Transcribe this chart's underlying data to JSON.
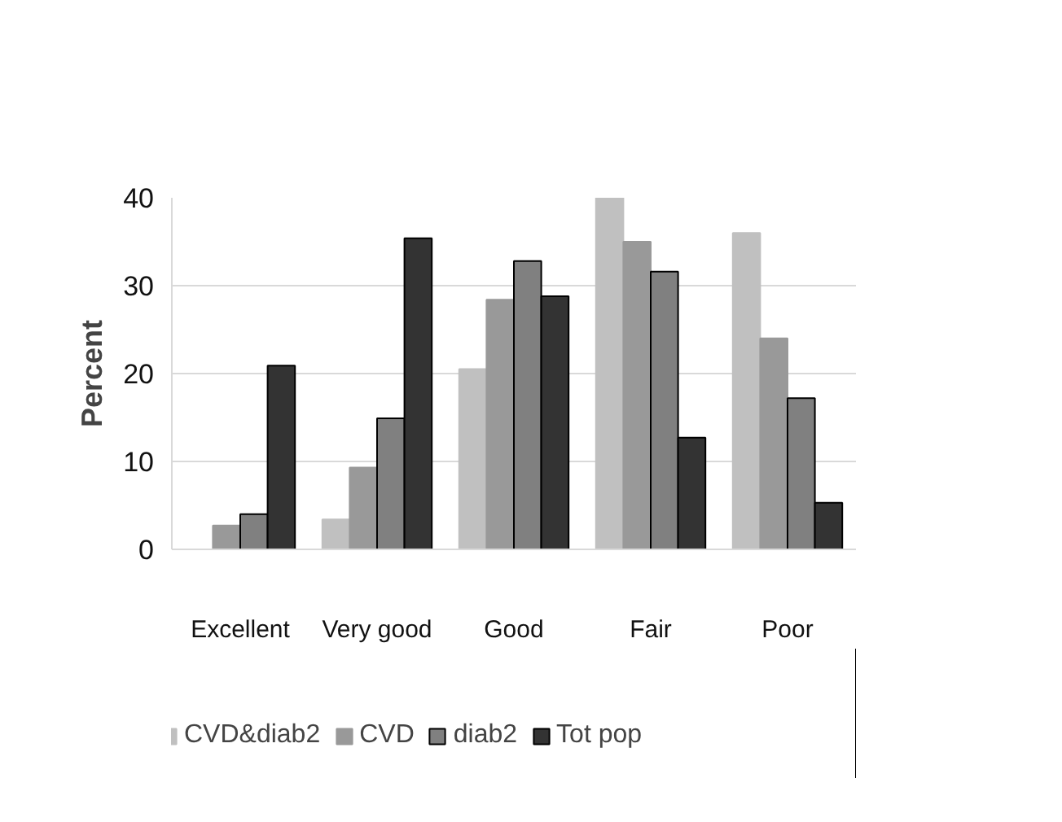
{
  "chart_data": {
    "type": "bar",
    "ylabel": "Percent",
    "categories": [
      "Excellent",
      "Very good",
      "Good",
      "Fair",
      "Poor"
    ],
    "series": [
      {
        "name": "CVD&diab2",
        "color": "#c0c0c0",
        "values": [
          0,
          3.4,
          20.5,
          40,
          36
        ]
      },
      {
        "name": "CVD",
        "color": "#999999",
        "values": [
          2.7,
          9.3,
          28.4,
          35,
          24
        ]
      },
      {
        "name": "diab2",
        "color": "#808080",
        "values": [
          4,
          14.9,
          32.8,
          31.6,
          17.2
        ]
      },
      {
        "name": "Tot pop",
        "color": "#333333",
        "values": [
          20.9,
          35.4,
          28.8,
          12.7,
          5.3
        ]
      }
    ],
    "ylim": [
      0,
      40
    ],
    "yticks": [
      0,
      10,
      20,
      30,
      40
    ],
    "grid": "y",
    "legend": "bottom"
  }
}
